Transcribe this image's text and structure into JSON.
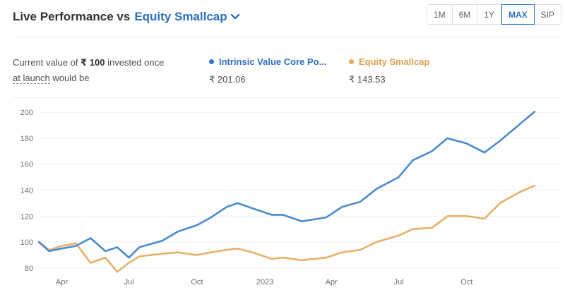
{
  "header": {
    "title": "Live Performance vs",
    "benchmark_link": "Equity Smallcap",
    "chevron_icon": "chevron-down-icon"
  },
  "ranges": {
    "options": [
      "1M",
      "6M",
      "1Y",
      "MAX",
      "SIP"
    ],
    "selected": "MAX"
  },
  "summary": {
    "prefix": "Current value of",
    "amount": "₹ 100",
    "middle": "invested once",
    "link": "at launch",
    "suffix": "would be"
  },
  "legend": [
    {
      "name": "Intrinsic Value Core Po...",
      "value": "₹ 201.06",
      "color": "#2f78c9"
    },
    {
      "name": "Equity Smallcap",
      "value": "₹ 143.53",
      "color": "#e8ac5c"
    }
  ],
  "colors": {
    "accent": "#2d71c4",
    "series_1": "#4a8bcf",
    "series_2": "#e6b169",
    "grid": "#eef0f2"
  },
  "chart_data": {
    "type": "line",
    "x": [
      "2022-03-01",
      "2022-03-15",
      "2022-04-01",
      "2022-04-20",
      "2022-05-10",
      "2022-05-30",
      "2022-06-15",
      "2022-07-01",
      "2022-07-15",
      "2022-08-15",
      "2022-09-05",
      "2022-10-01",
      "2022-10-20",
      "2022-11-10",
      "2022-11-25",
      "2022-12-15",
      "2023-01-10",
      "2023-01-25",
      "2023-02-20",
      "2023-03-25",
      "2023-04-15",
      "2023-05-10",
      "2023-06-01",
      "2023-07-01",
      "2023-07-20",
      "2023-08-15",
      "2023-09-05",
      "2023-10-01",
      "2023-10-25",
      "2023-11-15",
      "2023-12-10",
      "2024-01-01"
    ],
    "series": [
      {
        "name": "Intrinsic Value Core Po...",
        "values": [
          100,
          93,
          95,
          97,
          103,
          93,
          96,
          88,
          96,
          101,
          108,
          113,
          119,
          127,
          130,
          126,
          121,
          121,
          116,
          119,
          127,
          131,
          141,
          150,
          163,
          170,
          180,
          176,
          169,
          178,
          190,
          200.5
        ]
      },
      {
        "name": "Equity Smallcap",
        "values": [
          100,
          94,
          97,
          99,
          84,
          88,
          77,
          84,
          89,
          91,
          92,
          90,
          92,
          94,
          95,
          92,
          87,
          88,
          86,
          88,
          92,
          94,
          100,
          105,
          110,
          111,
          120,
          120,
          118,
          130,
          138,
          143.5
        ]
      }
    ],
    "y_ticks": [
      80,
      100,
      120,
      140,
      160,
      180,
      200
    ],
    "x_ticks": [
      {
        "label": "Apr",
        "x": "2022-04-01"
      },
      {
        "label": "Jul",
        "x": "2022-07-01"
      },
      {
        "label": "Oct",
        "x": "2022-10-01"
      },
      {
        "label": "2023",
        "x": "2023-01-01"
      },
      {
        "label": "Apr",
        "x": "2023-04-01"
      },
      {
        "label": "Jul",
        "x": "2023-07-01"
      },
      {
        "label": "Oct",
        "x": "2023-10-01"
      }
    ],
    "ylim": [
      75,
      205
    ],
    "xlim": [
      "2022-03-01",
      "2024-01-01"
    ],
    "grid": true,
    "legend": "top"
  }
}
